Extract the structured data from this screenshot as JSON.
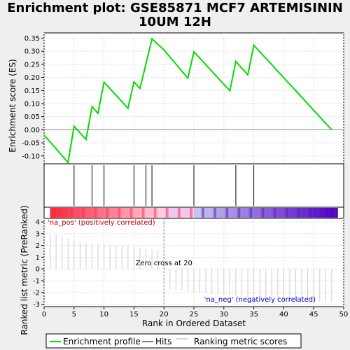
{
  "title_line1": "Enrichment plot: GSE85871 MCF7 ARTEMISININ",
  "title_line2": "10UM 12H",
  "colors": {
    "es_line": "#00dd00",
    "hits": "#000000",
    "grid": "#dddddd",
    "pos_label": "#cc0000",
    "neg_label": "#0000cc",
    "metric_bar": "#cccccc",
    "zero_cross_line": "#888888"
  },
  "chart_data": {
    "type": "line",
    "es_panel": {
      "ylabel": "Enrichment score (ES)",
      "xlim": [
        0,
        50
      ],
      "ylim": [
        -0.13,
        0.37
      ],
      "yticks": [
        -0.1,
        -0.05,
        0.0,
        0.05,
        0.1,
        0.15,
        0.2,
        0.25,
        0.3,
        0.35
      ],
      "ytick_labels": [
        "-0.10",
        "-0.05",
        "0.00",
        "0.05",
        "0.10",
        "0.15",
        "0.20",
        "0.25",
        "0.30",
        "0.35"
      ],
      "x": [
        0,
        4,
        5,
        7,
        8,
        9,
        10,
        14,
        15,
        16,
        18,
        20,
        24,
        25,
        31,
        32,
        34,
        35,
        48
      ],
      "y": [
        -0.02,
        -0.125,
        0.013,
        -0.037,
        0.088,
        0.063,
        0.182,
        0.082,
        0.183,
        0.158,
        0.347,
        0.305,
        0.197,
        0.298,
        0.149,
        0.261,
        0.21,
        0.323,
        0.0
      ]
    },
    "hits": [
      5,
      8,
      10,
      15,
      17,
      18,
      25,
      32,
      35
    ],
    "ranked_metric": {
      "ylabel": "Ranked list metric (PreRanked)",
      "xlabel": "Rank in Ordered Dataset",
      "xlim": [
        0,
        50
      ],
      "ylim": [
        -3.2,
        4.3
      ],
      "xticks": [
        0,
        5,
        10,
        15,
        20,
        25,
        30,
        35,
        40,
        45,
        50
      ],
      "yticks": [
        -3,
        -2,
        -1,
        0,
        1,
        2,
        3,
        4
      ],
      "ranks": [
        1,
        2,
        3,
        4,
        5,
        6,
        7,
        8,
        9,
        10,
        11,
        12,
        13,
        14,
        15,
        16,
        17,
        18,
        19,
        21,
        22,
        23,
        24,
        25,
        26,
        27,
        28,
        29,
        30,
        31,
        32,
        33,
        34,
        35,
        36,
        37,
        38,
        39,
        40,
        41,
        42,
        43,
        44,
        45,
        46,
        47,
        48
      ],
      "values": [
        3.0,
        2.9,
        2.7,
        2.6,
        2.5,
        2.3,
        2.25,
        2.2,
        2.15,
        2.1,
        2.05,
        2.0,
        1.95,
        1.9,
        1.85,
        1.8,
        1.7,
        1.65,
        1.6,
        -1.7,
        -1.8,
        -1.85,
        -1.9,
        -1.95,
        -2.0,
        -2.05,
        -2.1,
        -2.15,
        -2.2,
        -2.25,
        -2.3,
        -2.35,
        -2.4,
        -2.45,
        -2.5,
        -2.55,
        -2.6,
        -2.62,
        -2.65,
        -2.68,
        -2.7,
        -2.72,
        -2.75,
        -2.78,
        -2.8,
        -2.82,
        -2.85
      ],
      "zero_cross": 20,
      "zero_cross_label": "Zero cross at 20",
      "pos_label": "'na_pos' (positively correlated)",
      "neg_label": "'na_neg' (negatively correlated)"
    },
    "legend": {
      "placement": "bottom",
      "items": [
        "Enrichment profile",
        "Hits",
        "Ranking metric scores"
      ]
    }
  }
}
